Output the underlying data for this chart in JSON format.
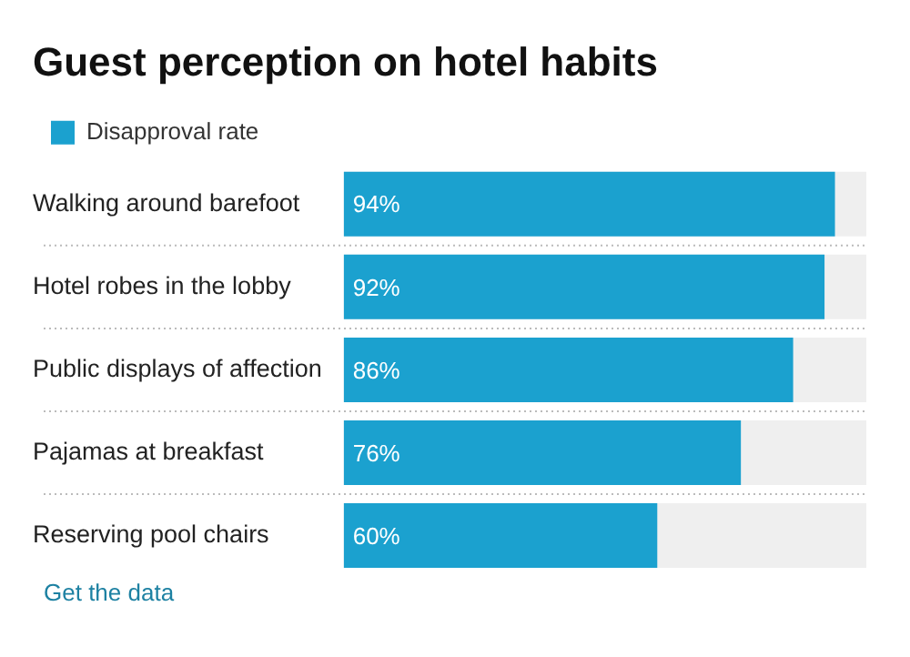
{
  "chart_data": {
    "type": "bar",
    "orientation": "horizontal",
    "title": "Guest perception on hotel habits",
    "categories": [
      "Walking around barefoot",
      "Hotel robes in the lobby",
      "Public displays of affection",
      "Pajamas at breakfast",
      "Reserving pool chairs"
    ],
    "series": [
      {
        "name": "Disapproval rate",
        "color": "#1ba1cf",
        "values": [
          94,
          92,
          86,
          76,
          60
        ],
        "value_labels": [
          "94%",
          "92%",
          "86%",
          "76%",
          "60%"
        ]
      }
    ],
    "xlim": [
      0,
      100
    ],
    "tick_labels": "y",
    "legend": "top left",
    "annotations": [
      "Get the data"
    ]
  }
}
